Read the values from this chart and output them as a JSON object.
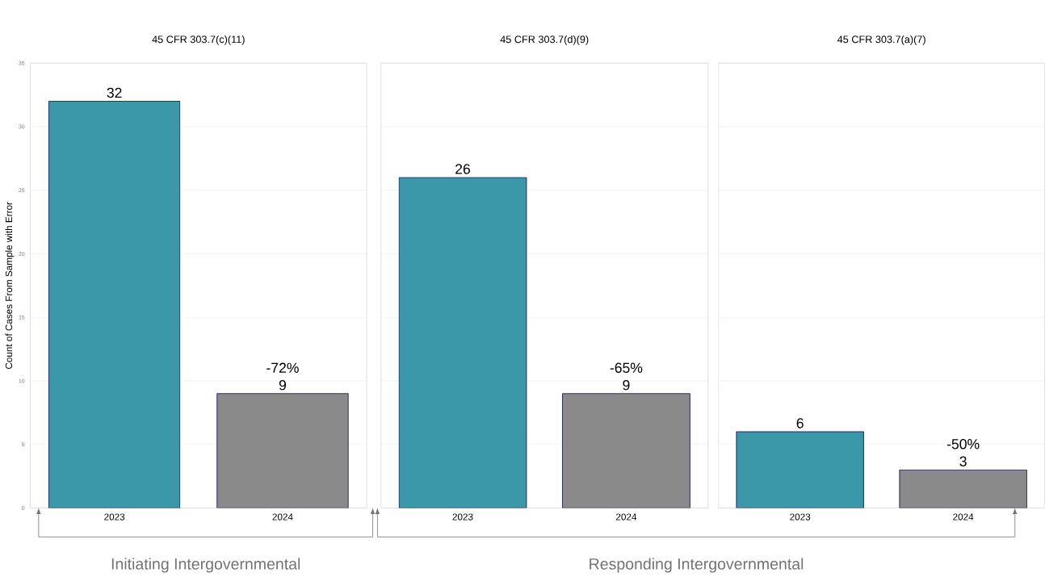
{
  "chart_data": [
    {
      "type": "bar",
      "title": "45 CFR 303.7(c)(11)",
      "ylabel": "Count of Cases From Sample with Error",
      "categories": [
        "2023",
        "2024"
      ],
      "values": [
        32,
        9
      ],
      "colors": [
        "#3b98a9",
        "#8a8a8a"
      ],
      "ylim": [
        0,
        35
      ],
      "yticks": [
        0,
        5,
        10,
        15,
        20,
        25,
        30,
        35
      ],
      "grid": "y",
      "data_labels": true,
      "annotations": [
        {
          "text": "-72%",
          "x": "2024",
          "y": 9
        },
        "Initiating Intergovernmental"
      ]
    },
    {
      "type": "bar",
      "title": "45 CFR 303.7(d)(9)",
      "categories": [
        "2023",
        "2024"
      ],
      "values": [
        26,
        9
      ],
      "colors": [
        "#3b98a9",
        "#8a8a8a"
      ],
      "ylim": [
        0,
        35
      ],
      "yticks": [
        0,
        5,
        10,
        15,
        20,
        25,
        30,
        35
      ],
      "grid": "y",
      "data_labels": true,
      "tick_labels": "x",
      "annotations": [
        {
          "text": "-65%",
          "x": "2024",
          "y": 9
        },
        "Responding Intergovernmental"
      ]
    },
    {
      "type": "bar",
      "title": "45 CFR 303.7(a)(7)",
      "categories": [
        "2023",
        "2024"
      ],
      "values": [
        6,
        3
      ],
      "colors": [
        "#3b98a9",
        "#8a8a8a"
      ],
      "ylim": [
        0,
        35
      ],
      "yticks": [
        0,
        5,
        10,
        15,
        20,
        25,
        30,
        35
      ],
      "grid": "y",
      "data_labels": true,
      "tick_labels": "x",
      "annotations": [
        {
          "text": "-50%",
          "x": "2024",
          "y": 3
        }
      ]
    }
  ]
}
